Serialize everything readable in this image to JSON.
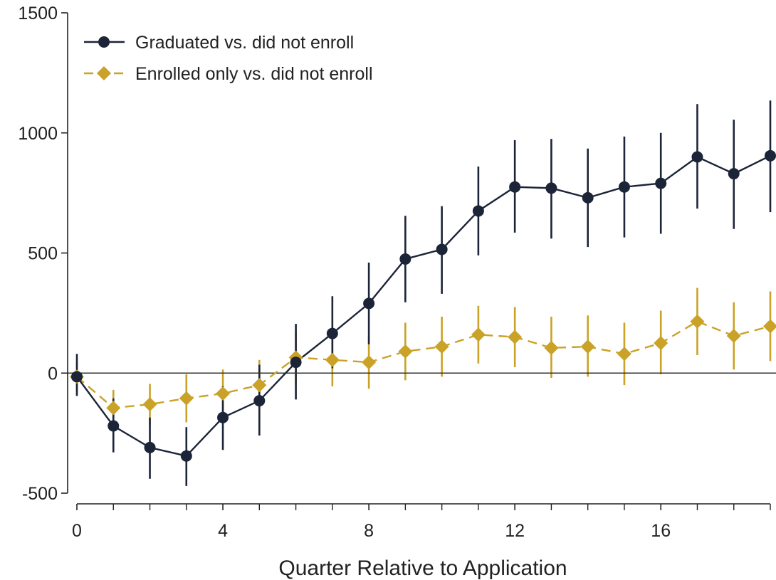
{
  "chart_data": {
    "type": "line",
    "title": "",
    "xlabel": "Quarter Relative to Application",
    "ylabel": "",
    "xlim": [
      0,
      19
    ],
    "ylim": [
      -500,
      1500
    ],
    "x_ticks": [
      0,
      4,
      8,
      12,
      16
    ],
    "x_minor_ticks": [
      1,
      2,
      3,
      5,
      6,
      7,
      9,
      10,
      11,
      13,
      14,
      15,
      17,
      18,
      19
    ],
    "y_ticks": [
      -500,
      0,
      500,
      1000,
      1500
    ],
    "reference_line_y": 0,
    "grid": false,
    "legend_position": "top-left",
    "x": [
      0,
      1,
      2,
      3,
      4,
      5,
      6,
      7,
      8,
      9,
      10,
      11,
      12,
      13,
      14,
      15,
      16,
      17,
      18,
      19
    ],
    "series": [
      {
        "name": "Graduated vs. did not enroll",
        "color": "#1c2438",
        "marker": "circle",
        "line_style": "solid",
        "values": [
          -15,
          -220,
          -310,
          -345,
          -185,
          -115,
          45,
          165,
          290,
          475,
          515,
          675,
          775,
          770,
          730,
          775,
          790,
          900,
          830,
          905
        ],
        "ci_low": [
          -95,
          -330,
          -440,
          -470,
          -320,
          -260,
          -110,
          20,
          120,
          295,
          330,
          490,
          585,
          560,
          525,
          565,
          580,
          685,
          600,
          670
        ],
        "ci_high": [
          80,
          -105,
          -185,
          -225,
          -55,
          35,
          205,
          320,
          460,
          655,
          695,
          860,
          970,
          975,
          935,
          985,
          1000,
          1120,
          1055,
          1135
        ]
      },
      {
        "name": "Enrolled only vs. did not enroll",
        "color": "#c9a227",
        "marker": "diamond",
        "line_style": "dashed",
        "values": [
          -15,
          -145,
          -130,
          -105,
          -85,
          -50,
          65,
          55,
          45,
          90,
          110,
          160,
          150,
          105,
          110,
          80,
          125,
          215,
          155,
          195
        ],
        "ci_low": [
          -75,
          -220,
          -215,
          -205,
          -185,
          -145,
          -40,
          -55,
          -65,
          -30,
          -15,
          40,
          25,
          -20,
          -15,
          -50,
          -5,
          75,
          15,
          50
        ],
        "ci_high": [
          45,
          -70,
          -45,
          -5,
          15,
          55,
          170,
          165,
          155,
          210,
          235,
          280,
          275,
          235,
          240,
          210,
          260,
          355,
          295,
          340
        ]
      }
    ]
  }
}
